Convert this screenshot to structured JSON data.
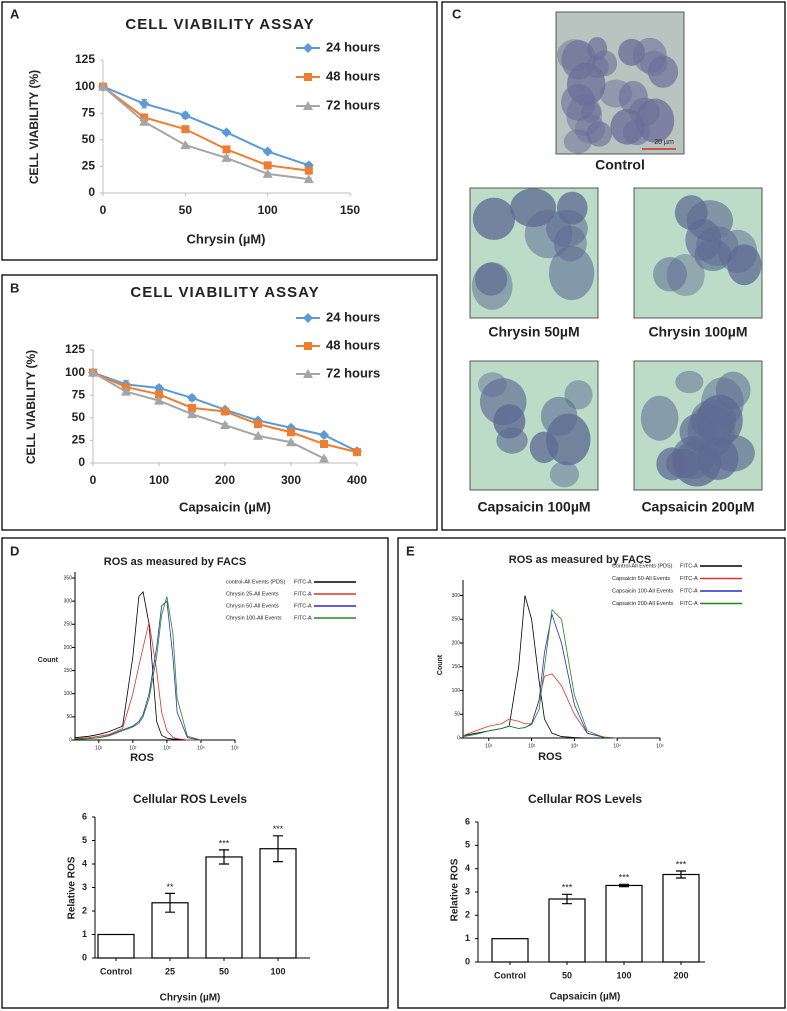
{
  "panel_letters": [
    "A",
    "B",
    "C",
    "D",
    "E"
  ],
  "micrographs": {
    "scale_bar": "20 µm",
    "labels": [
      "Control",
      "Chrysin 50µM",
      "Chrysin 100µM",
      "Capsaicin 100µM",
      "Capsaicin 200µM"
    ]
  },
  "chart_data": [
    {
      "type": "line",
      "title": "CELL VIABILITY ASSAY",
      "x_label": "Chrysin (µM)",
      "y_label": "CELL VIABILITY (%)",
      "x": [
        0,
        25,
        50,
        75,
        100,
        125
      ],
      "xlim": [
        0,
        150
      ],
      "xticks": [
        0,
        50,
        100,
        150
      ],
      "ylim": [
        0,
        125
      ],
      "yticks": [
        0,
        25,
        50,
        75,
        100,
        125
      ],
      "series": [
        {
          "name": "24 hours",
          "color": "#5b9bd5",
          "marker": "diamond",
          "values": [
            100,
            84,
            73,
            57,
            39,
            26
          ],
          "errors": [
            0,
            4,
            3,
            2,
            2,
            2
          ]
        },
        {
          "name": "48 hours",
          "color": "#ed7d31",
          "marker": "square",
          "values": [
            100,
            71,
            60,
            41,
            26,
            21
          ],
          "errors": [
            0,
            2,
            2,
            2,
            1,
            2
          ]
        },
        {
          "name": "72 hours",
          "color": "#a5a5a5",
          "marker": "triangle",
          "values": [
            100,
            67,
            45,
            33,
            18,
            13
          ],
          "errors": [
            0,
            2,
            1,
            2,
            1,
            1
          ]
        }
      ]
    },
    {
      "type": "line",
      "title": "CELL VIABILITY ASSAY",
      "x_label": "Capsaicin (µM)",
      "y_label": "CELL VIABILITY (%)",
      "x": [
        0,
        50,
        100,
        150,
        200,
        250,
        300,
        350,
        400
      ],
      "xlim": [
        0,
        400
      ],
      "xticks": [
        0,
        100,
        200,
        300,
        400
      ],
      "ylim": [
        0,
        125
      ],
      "yticks": [
        0,
        25,
        50,
        75,
        100,
        125
      ],
      "series": [
        {
          "name": "24 hours",
          "color": "#5b9bd5",
          "marker": "diamond",
          "values": [
            100,
            87,
            83,
            72,
            59,
            47,
            39,
            31,
            13
          ],
          "errors": [
            0,
            4,
            3,
            3,
            2,
            2,
            2,
            2,
            1
          ]
        },
        {
          "name": "48 hours",
          "color": "#ed7d31",
          "marker": "square",
          "values": [
            100,
            84,
            76,
            61,
            57,
            43,
            34,
            21,
            12
          ],
          "errors": [
            0,
            3,
            3,
            2,
            2,
            2,
            2,
            1,
            1
          ]
        },
        {
          "name": "72 hours",
          "color": "#a5a5a5",
          "marker": "triangle",
          "values": [
            100,
            79,
            69,
            54,
            42,
            30,
            23,
            5,
            null
          ],
          "errors": [
            0,
            3,
            2,
            2,
            2,
            1,
            1,
            1,
            null
          ]
        }
      ]
    },
    {
      "type": "line",
      "log_x": true,
      "title": "ROS as measured by FACS",
      "x_label": "ROS",
      "y_label": "Count",
      "legend_suffix": "FITC-A",
      "x": [
        2,
        5,
        10,
        20,
        50,
        100,
        150,
        200,
        300,
        500,
        700,
        1000,
        1500,
        2000,
        4000,
        10000
      ],
      "xlim": [
        2,
        100000
      ],
      "xticks": [
        {
          "value": 10,
          "label": "10¹"
        },
        {
          "value": 100,
          "label": "10²"
        },
        {
          "value": 1000,
          "label": "10³"
        },
        {
          "value": 10000,
          "label": "10⁴"
        },
        {
          "value": 100000,
          "label": "10⁵"
        }
      ],
      "ylim": [
        0,
        350
      ],
      "yticks": [
        0,
        50,
        100,
        150,
        200,
        250,
        300,
        350
      ],
      "series": [
        {
          "name": "control-All Events (PDS)",
          "color": "#000000",
          "values": [
            5,
            8,
            12,
            18,
            30,
            180,
            310,
            320,
            250,
            40,
            10,
            4,
            2,
            2,
            0,
            0
          ]
        },
        {
          "name": "Chrysin 25-All Events",
          "color": "#e03030",
          "values": [
            3,
            5,
            8,
            12,
            25,
            100,
            160,
            200,
            255,
            150,
            60,
            20,
            6,
            3,
            0,
            0
          ]
        },
        {
          "name": "Chrysin 50-All Events",
          "color": "#2a2ac8",
          "values": [
            2,
            3,
            5,
            10,
            22,
            30,
            40,
            55,
            100,
            200,
            290,
            300,
            180,
            60,
            5,
            0
          ]
        },
        {
          "name": "Chrysin 100-All Events",
          "color": "#1e8a1e",
          "values": [
            2,
            3,
            5,
            9,
            20,
            28,
            36,
            50,
            90,
            180,
            270,
            310,
            230,
            90,
            8,
            0
          ]
        }
      ]
    },
    {
      "type": "bar",
      "title": "Cellular ROS Levels",
      "x_label": "Chrysin (µM)",
      "y_label": "Relative ROS",
      "categories": [
        "Control",
        "25",
        "50",
        "100"
      ],
      "values": [
        1,
        2.35,
        4.3,
        4.65
      ],
      "errors": [
        0,
        0.4,
        0.3,
        0.55
      ],
      "annotations": [
        null,
        "**",
        "***",
        "***"
      ],
      "ylim": [
        0,
        6
      ],
      "yticks": [
        0,
        1,
        2,
        3,
        4,
        5,
        6
      ]
    },
    {
      "type": "line",
      "log_x": true,
      "title": "ROS as measured by FACS",
      "x_label": "ROS",
      "y_label": "Count",
      "legend_suffix": "FITC-A",
      "x": [
        2.5,
        5,
        10,
        20,
        30,
        50,
        70,
        100,
        150,
        200,
        300,
        500,
        1000,
        2000,
        5000,
        10000
      ],
      "xlim": [
        2.5,
        100000
      ],
      "xticks": [
        {
          "value": 10,
          "label": "10¹"
        },
        {
          "value": 100,
          "label": "10²"
        },
        {
          "value": 1000,
          "label": "10³"
        },
        {
          "value": 10000,
          "label": "10⁴"
        },
        {
          "value": 100000,
          "label": "10⁵"
        }
      ],
      "ylim": [
        0,
        320
      ],
      "yticks": [
        0,
        50,
        100,
        150,
        200,
        250,
        300
      ],
      "series": [
        {
          "name": "Control-All Events (PDS)",
          "color": "#000000",
          "values": [
            5,
            10,
            15,
            20,
            25,
            150,
            300,
            250,
            120,
            40,
            10,
            3,
            1,
            0,
            0,
            0
          ]
        },
        {
          "name": "Capsaicin 50-All Events",
          "color": "#e03030",
          "values": [
            5,
            15,
            25,
            30,
            40,
            35,
            30,
            30,
            80,
            130,
            135,
            110,
            50,
            10,
            2,
            0
          ]
        },
        {
          "name": "Capsaicin 100-All Events",
          "color": "#2a2ac8",
          "values": [
            3,
            8,
            15,
            20,
            25,
            20,
            22,
            30,
            80,
            180,
            260,
            200,
            70,
            10,
            1,
            0
          ]
        },
        {
          "name": "Capsaicin 200-All Events",
          "color": "#1e8a1e",
          "values": [
            3,
            8,
            15,
            20,
            25,
            20,
            22,
            28,
            60,
            150,
            270,
            250,
            90,
            15,
            1,
            0
          ]
        }
      ]
    },
    {
      "type": "bar",
      "title": "Cellular ROS Levels",
      "x_label": "Capsaicin (µM)",
      "y_label": "Relative ROS",
      "categories": [
        "Control",
        "50",
        "100",
        "200"
      ],
      "values": [
        1,
        2.7,
        3.28,
        3.75
      ],
      "errors": [
        0,
        0.2,
        0.05,
        0.15
      ],
      "annotations": [
        null,
        "***",
        "***",
        "***"
      ],
      "ylim": [
        0,
        6
      ],
      "yticks": [
        0,
        1,
        2,
        3,
        4,
        5,
        6
      ]
    }
  ]
}
